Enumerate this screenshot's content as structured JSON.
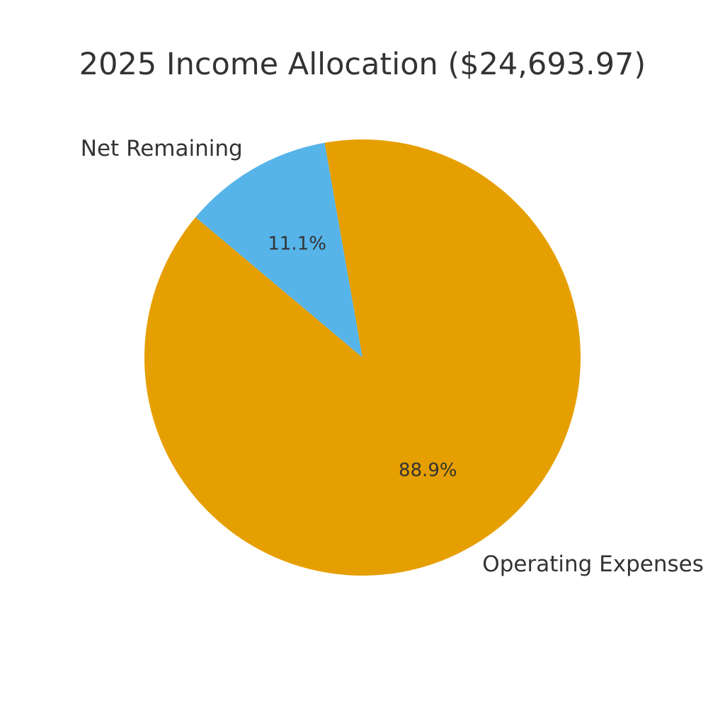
{
  "chart_data": {
    "type": "pie",
    "title": "2025 Income Allocation ($24,693.97)",
    "slices": [
      {
        "label": "Net Remaining",
        "percent": 11.1,
        "pct_label": "11.1%",
        "color": "#56B4E9"
      },
      {
        "label": "Operating Expenses",
        "percent": 88.9,
        "pct_label": "88.9%",
        "color": "#E69F00"
      }
    ],
    "start_angle_deg": 100,
    "direction": "counterclockwise",
    "text_color": "#333333"
  }
}
